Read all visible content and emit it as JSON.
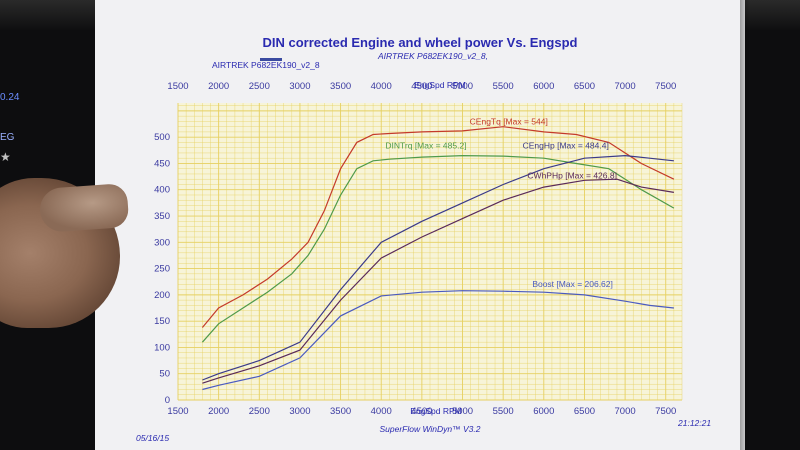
{
  "title": "DIN corrected Engine and wheel power Vs. Engspd",
  "file_label": "AIRTREK P682EK190_v2_8,",
  "legend_file": "AIRTREK P682EK190_v2_8",
  "date": "05/16/15",
  "time": "21:12:21",
  "software": "SuperFlow WinDyn™ V3.2",
  "side_text": [
    "0.24",
    "EG"
  ],
  "colors": {
    "red": "#c43a2a",
    "green": "#4f9a4a",
    "darkblue": "#3a3a8a",
    "purple": "#5a2a5a",
    "blue": "#4a5ac0",
    "grid": "#e6d060",
    "plotbg": "#f7f4d8"
  },
  "chart_data": {
    "type": "line",
    "xlabel": "EngSpd RPM",
    "ylabel": "",
    "xlim": [
      1500,
      7700
    ],
    "ylim": [
      0,
      565
    ],
    "x_ticks": [
      1500,
      2000,
      2500,
      3000,
      3500,
      4000,
      4500,
      5000,
      5500,
      6000,
      6500,
      7000,
      7500
    ],
    "y_ticks": [
      0,
      50,
      100,
      150,
      200,
      250,
      300,
      350,
      400,
      450,
      500
    ],
    "grid": true,
    "series": [
      {
        "name": "CEngTq",
        "label": "CEngTq [Max = 544]",
        "color": "#c43a2a",
        "x": [
          1800,
          2000,
          2300,
          2600,
          2900,
          3100,
          3300,
          3500,
          3700,
          3900,
          4100,
          4500,
          5000,
          5500,
          6000,
          6400,
          6800,
          7200,
          7600
        ],
        "y": [
          138,
          175,
          200,
          230,
          268,
          300,
          360,
          440,
          490,
          505,
          507,
          510,
          512,
          520,
          510,
          505,
          490,
          450,
          420
        ]
      },
      {
        "name": "DINTrq",
        "label": "DINTrq [Max = 485.2]",
        "color": "#4f9a4a",
        "x": [
          1800,
          2000,
          2300,
          2600,
          2900,
          3100,
          3300,
          3500,
          3700,
          3900,
          4100,
          4500,
          5000,
          5500,
          6000,
          6400,
          6800,
          7200,
          7600
        ],
        "y": [
          110,
          145,
          175,
          205,
          240,
          275,
          325,
          390,
          440,
          455,
          458,
          462,
          465,
          464,
          460,
          450,
          440,
          400,
          365
        ]
      },
      {
        "name": "CEngHp",
        "label": "CEngHp [Max = 484.4]",
        "color": "#3a3a8a",
        "x": [
          1800,
          2000,
          2500,
          3000,
          3500,
          4000,
          4500,
          5000,
          5500,
          6000,
          6500,
          7000,
          7300,
          7600
        ],
        "y": [
          38,
          50,
          75,
          110,
          210,
          300,
          340,
          375,
          410,
          440,
          460,
          465,
          460,
          455
        ]
      },
      {
        "name": "CWhPHp",
        "label": "CWhPHp [Max = 426.8]",
        "color": "#5a2a5a",
        "x": [
          1800,
          2000,
          2500,
          3000,
          3500,
          4000,
          4500,
          5000,
          5500,
          6000,
          6500,
          6900,
          7200,
          7600
        ],
        "y": [
          32,
          42,
          65,
          95,
          190,
          270,
          310,
          345,
          380,
          405,
          418,
          420,
          405,
          395
        ]
      },
      {
        "name": "Boost",
        "label": "Boost [Max = 206.62]",
        "color": "#4a5ac0",
        "x": [
          1800,
          2000,
          2500,
          3000,
          3500,
          4000,
          4500,
          5000,
          5500,
          6000,
          6500,
          7000,
          7300,
          7600
        ],
        "y": [
          20,
          28,
          45,
          80,
          160,
          198,
          205,
          208,
          207,
          205,
          200,
          188,
          180,
          175
        ]
      }
    ]
  }
}
